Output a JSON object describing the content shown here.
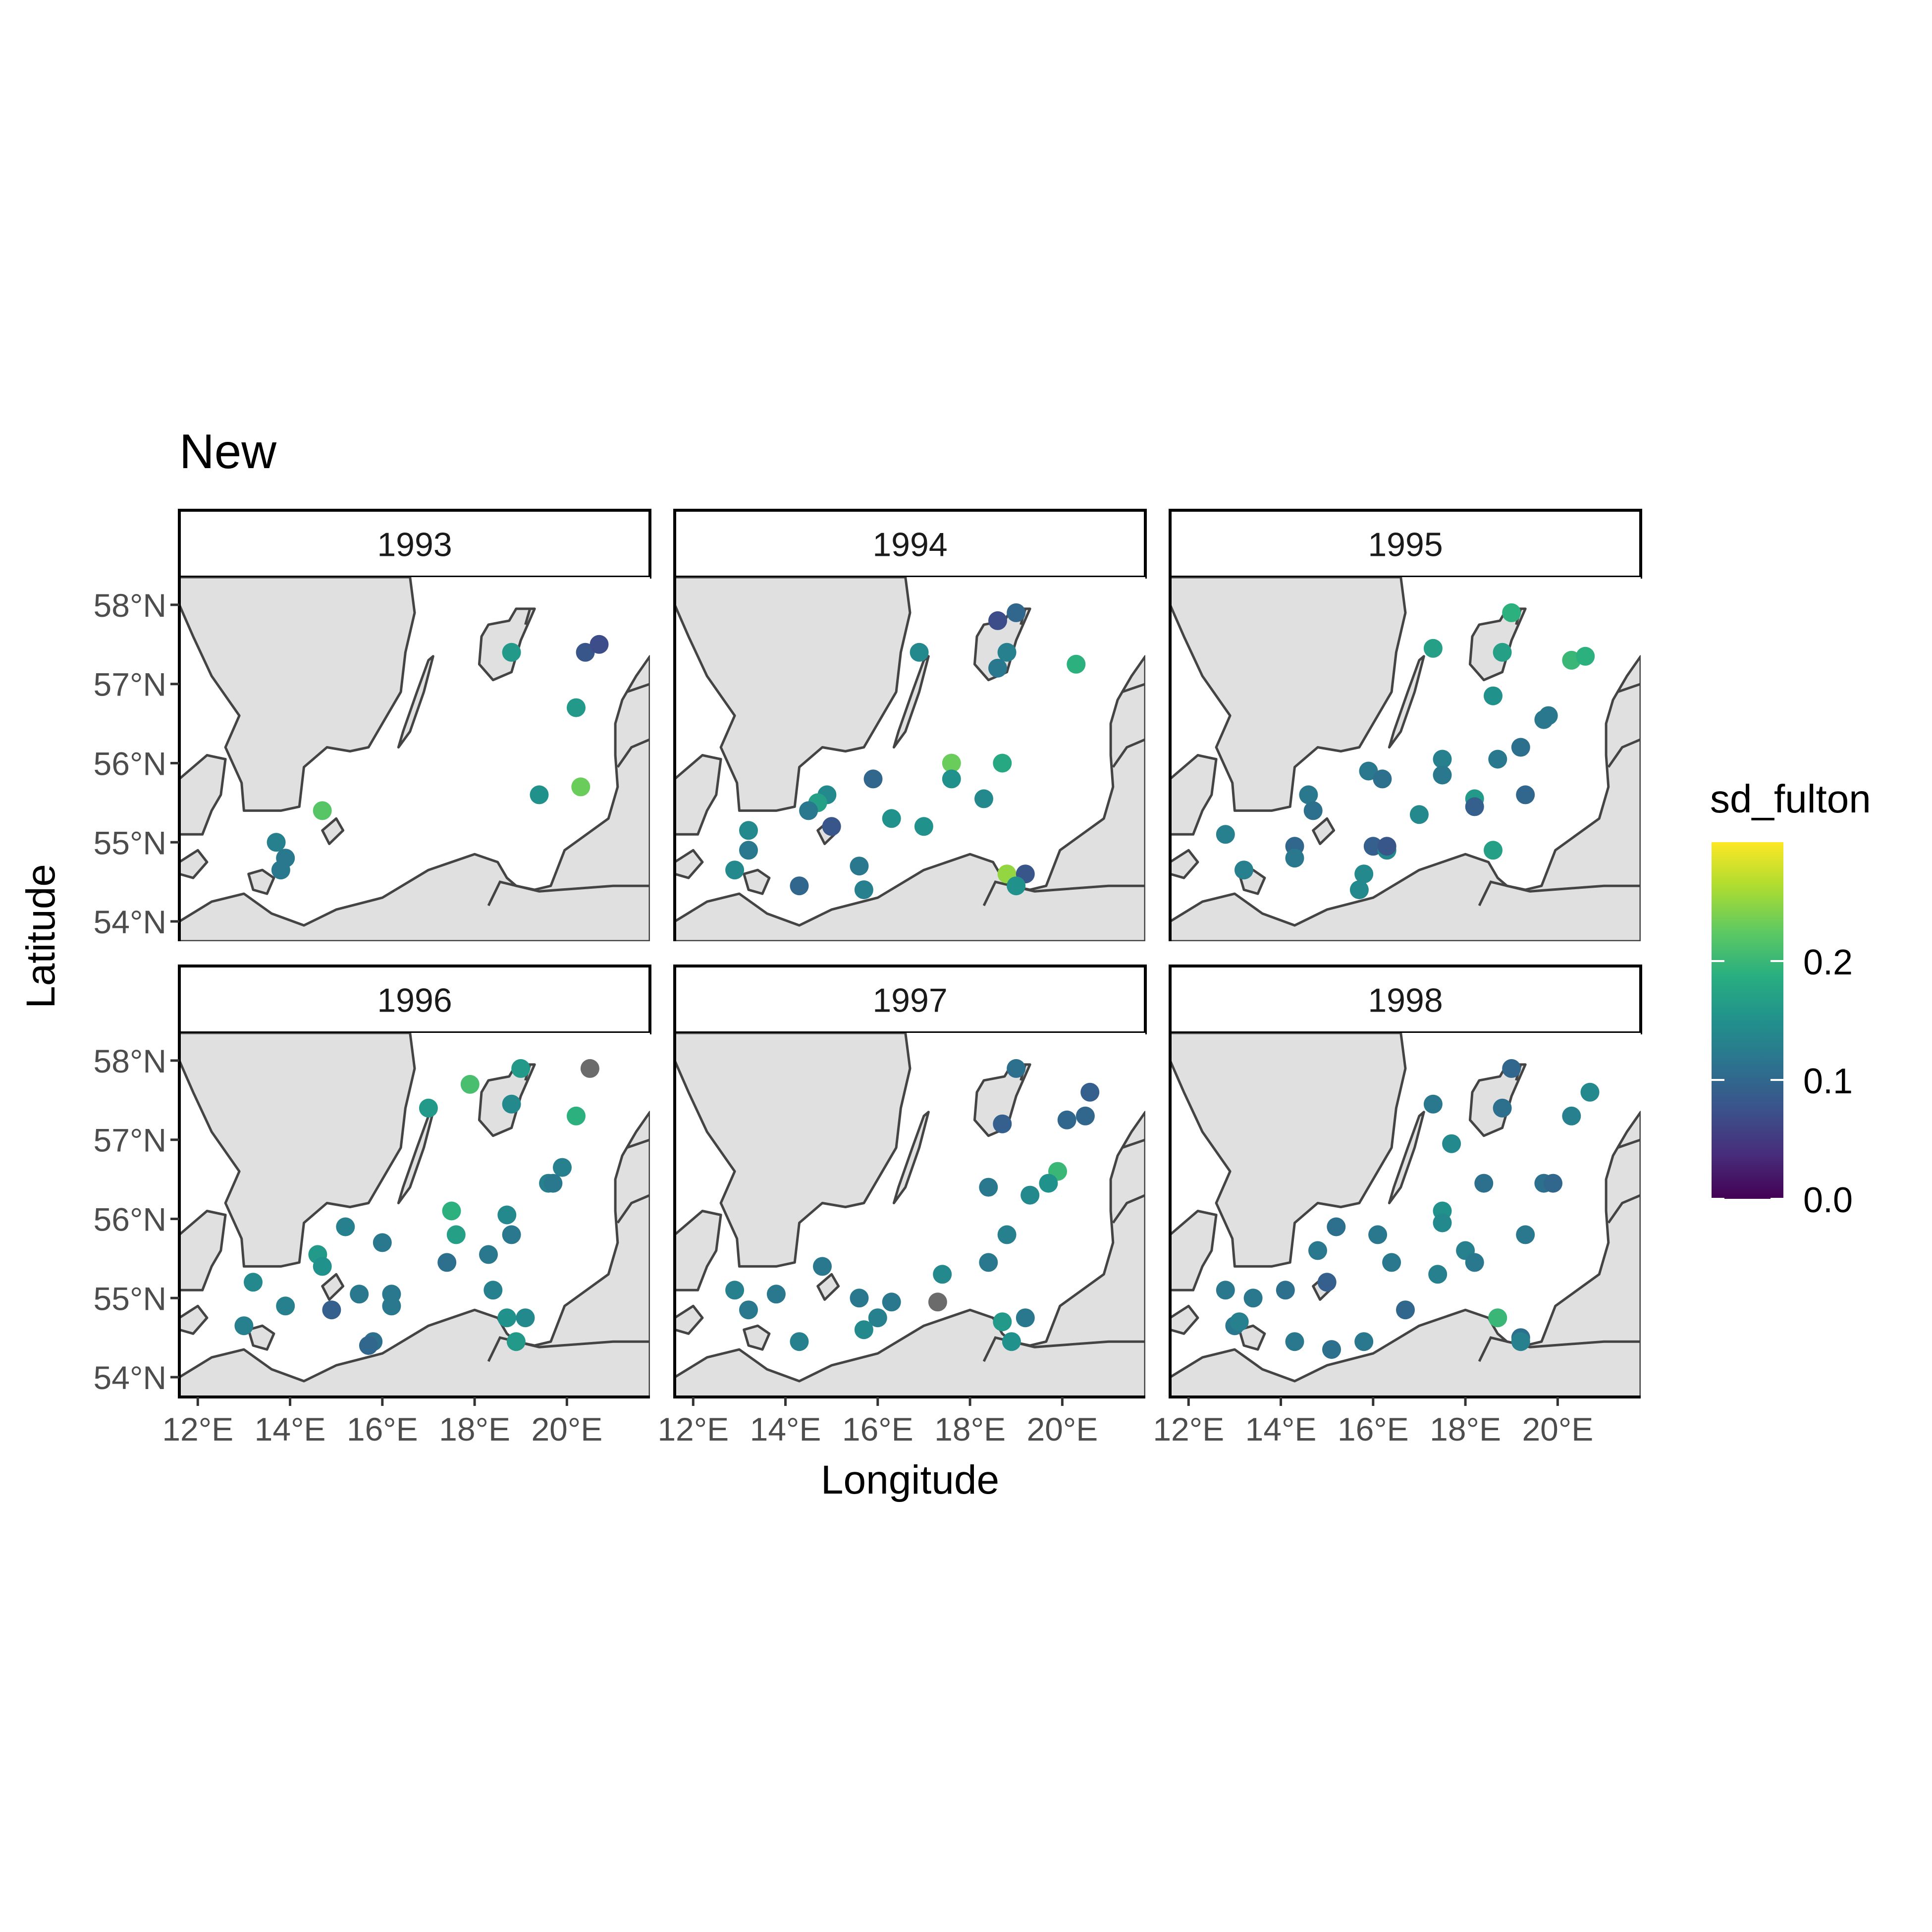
{
  "title": "New",
  "x_axis": {
    "label": "Longitude",
    "ticks": [
      "12°E",
      "14°E",
      "16°E",
      "18°E",
      "20°E"
    ],
    "tick_values": [
      12,
      14,
      16,
      18,
      20
    ]
  },
  "y_axis": {
    "label": "Latitude",
    "ticks": [
      "54°N",
      "55°N",
      "56°N",
      "57°N",
      "58°N"
    ],
    "tick_values": [
      54,
      55,
      56,
      57,
      58
    ]
  },
  "legend": {
    "title": "sd_fulton",
    "ticks": [
      "0.0",
      "0.1",
      "0.2"
    ],
    "tick_values": [
      0.0,
      0.1,
      0.2
    ],
    "range": [
      0.0,
      0.3
    ]
  },
  "colors": {
    "land": "#e0e0e0",
    "coast": "#444444",
    "missing": "#6b6b6b",
    "viridis": [
      "#440154",
      "#472d7b",
      "#3b528b",
      "#2c728e",
      "#21918c",
      "#28ae80",
      "#5ec962",
      "#addc30",
      "#fde725"
    ]
  },
  "chart_data": {
    "type": "scatter",
    "title": "New",
    "xlabel": "Longitude",
    "ylabel": "Latitude",
    "xlim": [
      11.6,
      21.8
    ],
    "ylim": [
      53.75,
      58.35
    ],
    "color_variable": "sd_fulton",
    "panels": [
      {
        "label": "1993",
        "points": [
          {
            "lon": 18.8,
            "lat": 57.4,
            "sd": 0.16
          },
          {
            "lon": 20.4,
            "lat": 57.4,
            "sd": 0.08
          },
          {
            "lon": 20.7,
            "lat": 57.5,
            "sd": 0.07
          },
          {
            "lon": 20.2,
            "lat": 56.7,
            "sd": 0.16
          },
          {
            "lon": 20.3,
            "lat": 55.7,
            "sd": 0.23
          },
          {
            "lon": 19.4,
            "lat": 55.6,
            "sd": 0.15
          },
          {
            "lon": 14.7,
            "lat": 55.4,
            "sd": 0.22
          },
          {
            "lon": 13.7,
            "lat": 55.0,
            "sd": 0.13
          },
          {
            "lon": 13.9,
            "lat": 54.8,
            "sd": 0.12
          },
          {
            "lon": 13.8,
            "lat": 54.65,
            "sd": 0.12
          }
        ]
      },
      {
        "label": "1994",
        "points": [
          {
            "lon": 18.6,
            "lat": 57.8,
            "sd": 0.07
          },
          {
            "lon": 19.0,
            "lat": 57.9,
            "sd": 0.1
          },
          {
            "lon": 16.9,
            "lat": 57.4,
            "sd": 0.14
          },
          {
            "lon": 18.8,
            "lat": 57.4,
            "sd": 0.13
          },
          {
            "lon": 18.6,
            "lat": 57.2,
            "sd": 0.12
          },
          {
            "lon": 20.3,
            "lat": 57.25,
            "sd": 0.19
          },
          {
            "lon": 17.6,
            "lat": 56.0,
            "sd": 0.23
          },
          {
            "lon": 18.7,
            "lat": 56.0,
            "sd": 0.18
          },
          {
            "lon": 15.9,
            "lat": 55.8,
            "sd": 0.1
          },
          {
            "lon": 17.6,
            "lat": 55.8,
            "sd": 0.15
          },
          {
            "lon": 18.3,
            "lat": 55.55,
            "sd": 0.14
          },
          {
            "lon": 14.9,
            "lat": 55.6,
            "sd": 0.14
          },
          {
            "lon": 14.7,
            "lat": 55.5,
            "sd": 0.17
          },
          {
            "lon": 14.5,
            "lat": 55.4,
            "sd": 0.12
          },
          {
            "lon": 16.3,
            "lat": 55.3,
            "sd": 0.15
          },
          {
            "lon": 17.0,
            "lat": 55.2,
            "sd": 0.15
          },
          {
            "lon": 15.0,
            "lat": 55.2,
            "sd": 0.08
          },
          {
            "lon": 13.2,
            "lat": 55.15,
            "sd": 0.14
          },
          {
            "lon": 13.2,
            "lat": 54.9,
            "sd": 0.12
          },
          {
            "lon": 12.9,
            "lat": 54.65,
            "sd": 0.14
          },
          {
            "lon": 15.6,
            "lat": 54.7,
            "sd": 0.12
          },
          {
            "lon": 14.3,
            "lat": 54.45,
            "sd": 0.1
          },
          {
            "lon": 15.7,
            "lat": 54.4,
            "sd": 0.13
          },
          {
            "lon": 18.8,
            "lat": 54.6,
            "sd": 0.25
          },
          {
            "lon": 19.2,
            "lat": 54.6,
            "sd": 0.08
          },
          {
            "lon": 19.0,
            "lat": 54.45,
            "sd": 0.15
          }
        ]
      },
      {
        "label": "1995",
        "points": [
          {
            "lon": 19.0,
            "lat": 57.9,
            "sd": 0.19
          },
          {
            "lon": 17.3,
            "lat": 57.45,
            "sd": 0.17
          },
          {
            "lon": 18.8,
            "lat": 57.4,
            "sd": 0.17
          },
          {
            "lon": 20.3,
            "lat": 57.3,
            "sd": 0.2
          },
          {
            "lon": 20.6,
            "lat": 57.35,
            "sd": 0.19
          },
          {
            "lon": 18.6,
            "lat": 56.85,
            "sd": 0.15
          },
          {
            "lon": 19.7,
            "lat": 56.55,
            "sd": 0.12
          },
          {
            "lon": 19.8,
            "lat": 56.6,
            "sd": 0.12
          },
          {
            "lon": 17.5,
            "lat": 56.05,
            "sd": 0.13
          },
          {
            "lon": 18.7,
            "lat": 56.05,
            "sd": 0.12
          },
          {
            "lon": 19.2,
            "lat": 56.2,
            "sd": 0.11
          },
          {
            "lon": 15.9,
            "lat": 55.9,
            "sd": 0.12
          },
          {
            "lon": 16.2,
            "lat": 55.8,
            "sd": 0.11
          },
          {
            "lon": 17.5,
            "lat": 55.85,
            "sd": 0.12
          },
          {
            "lon": 14.6,
            "lat": 55.6,
            "sd": 0.12
          },
          {
            "lon": 14.7,
            "lat": 55.4,
            "sd": 0.11
          },
          {
            "lon": 18.2,
            "lat": 55.55,
            "sd": 0.16
          },
          {
            "lon": 18.2,
            "lat": 55.45,
            "sd": 0.09
          },
          {
            "lon": 19.3,
            "lat": 55.6,
            "sd": 0.1
          },
          {
            "lon": 17.0,
            "lat": 55.35,
            "sd": 0.14
          },
          {
            "lon": 12.8,
            "lat": 55.1,
            "sd": 0.13
          },
          {
            "lon": 14.3,
            "lat": 54.95,
            "sd": 0.1
          },
          {
            "lon": 14.3,
            "lat": 54.8,
            "sd": 0.12
          },
          {
            "lon": 16.0,
            "lat": 54.95,
            "sd": 0.09
          },
          {
            "lon": 16.3,
            "lat": 54.9,
            "sd": 0.14
          },
          {
            "lon": 16.3,
            "lat": 54.95,
            "sd": 0.08
          },
          {
            "lon": 13.2,
            "lat": 54.65,
            "sd": 0.13
          },
          {
            "lon": 18.6,
            "lat": 54.9,
            "sd": 0.17
          },
          {
            "lon": 15.8,
            "lat": 54.6,
            "sd": 0.14
          },
          {
            "lon": 15.7,
            "lat": 54.4,
            "sd": 0.14
          }
        ]
      },
      {
        "label": "1996",
        "points": [
          {
            "lon": 17.9,
            "lat": 57.7,
            "sd": 0.21
          },
          {
            "lon": 19.0,
            "lat": 57.9,
            "sd": 0.16
          },
          {
            "lon": 20.5,
            "lat": 57.9,
            "sd": null
          },
          {
            "lon": 17.0,
            "lat": 57.4,
            "sd": 0.16
          },
          {
            "lon": 18.8,
            "lat": 57.45,
            "sd": 0.14
          },
          {
            "lon": 20.2,
            "lat": 57.3,
            "sd": 0.19
          },
          {
            "lon": 19.9,
            "lat": 56.65,
            "sd": 0.13
          },
          {
            "lon": 19.6,
            "lat": 56.45,
            "sd": 0.13
          },
          {
            "lon": 19.7,
            "lat": 56.45,
            "sd": 0.12
          },
          {
            "lon": 17.5,
            "lat": 56.1,
            "sd": 0.19
          },
          {
            "lon": 17.6,
            "lat": 55.8,
            "sd": 0.17
          },
          {
            "lon": 18.7,
            "lat": 56.05,
            "sd": 0.14
          },
          {
            "lon": 18.8,
            "lat": 55.8,
            "sd": 0.12
          },
          {
            "lon": 15.2,
            "lat": 55.9,
            "sd": 0.13
          },
          {
            "lon": 16.0,
            "lat": 55.7,
            "sd": 0.12
          },
          {
            "lon": 14.6,
            "lat": 55.55,
            "sd": 0.16
          },
          {
            "lon": 14.7,
            "lat": 55.4,
            "sd": 0.15
          },
          {
            "lon": 17.4,
            "lat": 55.45,
            "sd": 0.11
          },
          {
            "lon": 18.3,
            "lat": 55.55,
            "sd": 0.12
          },
          {
            "lon": 18.4,
            "lat": 55.1,
            "sd": 0.13
          },
          {
            "lon": 13.2,
            "lat": 55.2,
            "sd": 0.14
          },
          {
            "lon": 15.5,
            "lat": 55.05,
            "sd": 0.12
          },
          {
            "lon": 16.2,
            "lat": 55.05,
            "sd": 0.12
          },
          {
            "lon": 16.2,
            "lat": 54.9,
            "sd": 0.12
          },
          {
            "lon": 13.9,
            "lat": 54.9,
            "sd": 0.13
          },
          {
            "lon": 14.9,
            "lat": 54.85,
            "sd": 0.09
          },
          {
            "lon": 13.0,
            "lat": 54.65,
            "sd": 0.13
          },
          {
            "lon": 15.8,
            "lat": 54.45,
            "sd": 0.11
          },
          {
            "lon": 15.7,
            "lat": 54.4,
            "sd": 0.1
          },
          {
            "lon": 18.7,
            "lat": 54.75,
            "sd": 0.15
          },
          {
            "lon": 19.1,
            "lat": 54.75,
            "sd": 0.14
          },
          {
            "lon": 18.9,
            "lat": 54.45,
            "sd": 0.16
          }
        ]
      },
      {
        "label": "1997",
        "points": [
          {
            "lon": 19.0,
            "lat": 57.9,
            "sd": 0.11
          },
          {
            "lon": 20.6,
            "lat": 57.6,
            "sd": 0.09
          },
          {
            "lon": 18.7,
            "lat": 57.2,
            "sd": 0.09
          },
          {
            "lon": 20.1,
            "lat": 57.25,
            "sd": 0.1
          },
          {
            "lon": 20.5,
            "lat": 57.3,
            "sd": 0.1
          },
          {
            "lon": 19.9,
            "lat": 56.6,
            "sd": 0.2
          },
          {
            "lon": 19.7,
            "lat": 56.45,
            "sd": 0.15
          },
          {
            "lon": 18.4,
            "lat": 56.4,
            "sd": 0.12
          },
          {
            "lon": 19.3,
            "lat": 56.3,
            "sd": 0.14
          },
          {
            "lon": 18.8,
            "lat": 55.8,
            "sd": 0.13
          },
          {
            "lon": 18.4,
            "lat": 55.45,
            "sd": 0.12
          },
          {
            "lon": 14.8,
            "lat": 55.4,
            "sd": 0.12
          },
          {
            "lon": 17.4,
            "lat": 55.3,
            "sd": 0.14
          },
          {
            "lon": 12.9,
            "lat": 55.1,
            "sd": 0.13
          },
          {
            "lon": 13.8,
            "lat": 55.05,
            "sd": 0.12
          },
          {
            "lon": 15.6,
            "lat": 55.0,
            "sd": 0.12
          },
          {
            "lon": 16.3,
            "lat": 54.95,
            "sd": 0.12
          },
          {
            "lon": 17.3,
            "lat": 54.95,
            "sd": null
          },
          {
            "lon": 13.2,
            "lat": 54.85,
            "sd": 0.12
          },
          {
            "lon": 16.0,
            "lat": 54.75,
            "sd": 0.13
          },
          {
            "lon": 18.7,
            "lat": 54.7,
            "sd": 0.16
          },
          {
            "lon": 19.2,
            "lat": 54.75,
            "sd": 0.12
          },
          {
            "lon": 15.7,
            "lat": 54.6,
            "sd": 0.14
          },
          {
            "lon": 14.3,
            "lat": 54.45,
            "sd": 0.13
          },
          {
            "lon": 18.9,
            "lat": 54.45,
            "sd": 0.15
          }
        ]
      },
      {
        "label": "1998",
        "points": [
          {
            "lon": 19.0,
            "lat": 57.9,
            "sd": 0.1
          },
          {
            "lon": 17.3,
            "lat": 57.45,
            "sd": 0.12
          },
          {
            "lon": 18.8,
            "lat": 57.4,
            "sd": 0.11
          },
          {
            "lon": 20.3,
            "lat": 57.3,
            "sd": 0.13
          },
          {
            "lon": 20.7,
            "lat": 57.6,
            "sd": 0.14
          },
          {
            "lon": 17.7,
            "lat": 56.95,
            "sd": 0.14
          },
          {
            "lon": 19.7,
            "lat": 56.45,
            "sd": 0.11
          },
          {
            "lon": 19.9,
            "lat": 56.45,
            "sd": 0.1
          },
          {
            "lon": 18.4,
            "lat": 56.45,
            "sd": 0.11
          },
          {
            "lon": 17.5,
            "lat": 56.1,
            "sd": 0.15
          },
          {
            "lon": 17.5,
            "lat": 55.95,
            "sd": 0.14
          },
          {
            "lon": 19.3,
            "lat": 55.8,
            "sd": 0.12
          },
          {
            "lon": 16.1,
            "lat": 55.8,
            "sd": 0.12
          },
          {
            "lon": 15.2,
            "lat": 55.9,
            "sd": 0.11
          },
          {
            "lon": 14.8,
            "lat": 55.6,
            "sd": 0.12
          },
          {
            "lon": 18.0,
            "lat": 55.6,
            "sd": 0.13
          },
          {
            "lon": 18.2,
            "lat": 55.45,
            "sd": 0.12
          },
          {
            "lon": 16.4,
            "lat": 55.45,
            "sd": 0.12
          },
          {
            "lon": 17.4,
            "lat": 55.3,
            "sd": 0.13
          },
          {
            "lon": 15.0,
            "lat": 55.2,
            "sd": 0.09
          },
          {
            "lon": 12.8,
            "lat": 55.1,
            "sd": 0.12
          },
          {
            "lon": 13.4,
            "lat": 55.0,
            "sd": 0.12
          },
          {
            "lon": 14.1,
            "lat": 55.1,
            "sd": 0.11
          },
          {
            "lon": 16.7,
            "lat": 54.85,
            "sd": 0.1
          },
          {
            "lon": 13.0,
            "lat": 54.65,
            "sd": 0.12
          },
          {
            "lon": 13.1,
            "lat": 54.7,
            "sd": 0.13
          },
          {
            "lon": 14.3,
            "lat": 54.45,
            "sd": 0.12
          },
          {
            "lon": 15.1,
            "lat": 54.35,
            "sd": 0.11
          },
          {
            "lon": 15.8,
            "lat": 54.45,
            "sd": 0.12
          },
          {
            "lon": 18.7,
            "lat": 54.75,
            "sd": 0.2
          },
          {
            "lon": 19.2,
            "lat": 54.5,
            "sd": 0.11
          },
          {
            "lon": 19.2,
            "lat": 54.45,
            "sd": 0.13
          }
        ]
      }
    ]
  }
}
